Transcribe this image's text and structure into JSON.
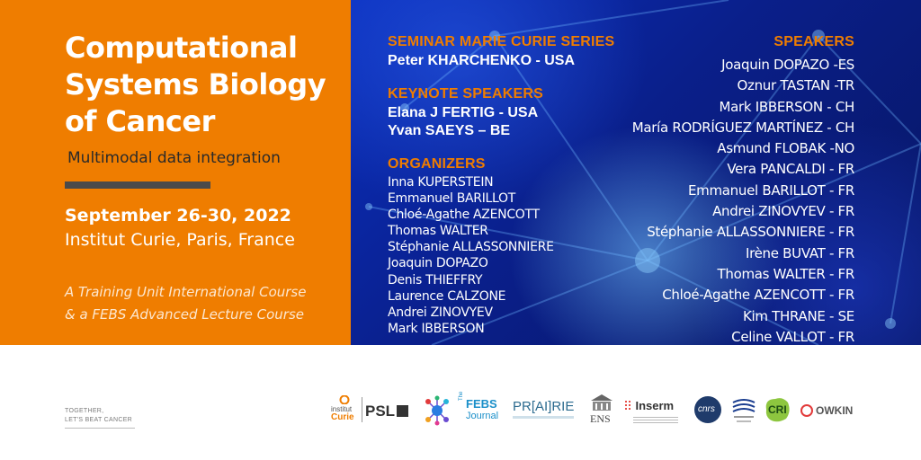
{
  "event": {
    "title_line1": "Computational",
    "title_line2": "Systems Biology",
    "title_line3": "of Cancer",
    "subtitle": "Multimodal data integration",
    "dates": "September 26-30, 2022",
    "location": "Institut Curie, Paris, France",
    "course_line1": "A Training Unit International Course",
    "course_line2": "& a FEBS Advanced Lecture Course"
  },
  "seminar": {
    "heading": "SEMINAR MARIE CURIE SERIES",
    "speaker": "Peter KHARCHENKO - USA"
  },
  "keynote": {
    "heading": "KEYNOTE SPEAKERS",
    "speakers": [
      "Elana J FERTIG - USA",
      "Yvan SAEYS – BE"
    ]
  },
  "organizers": {
    "heading": "ORGANIZERS",
    "names": [
      "Inna KUPERSTEIN",
      "Emmanuel BARILLOT",
      "Chloé-Agathe AZENCOTT",
      "Thomas WALTER",
      "Stéphanie ALLASSONNIERE",
      "Joaquin DOPAZO",
      "Denis THIEFFRY",
      "Laurence CALZONE",
      "Andrei ZINOVYEV",
      "Mark IBBERSON"
    ]
  },
  "speakers": {
    "heading": "SPEAKERS",
    "names": [
      "Joaquin DOPAZO -ES",
      "Oznur TASTAN -TR",
      "Mark IBBERSON - CH",
      "María RODRÍGUEZ MARTÍNEZ - CH",
      "Asmund FLOBAK -NO",
      "Vera PANCALDI - FR",
      "Emmanuel BARILLOT - FR",
      "Andrei ZINOVYEV - FR",
      "Stéphanie ALLASSONNIERE - FR",
      "Irène BUVAT - FR",
      "Thomas WALTER - FR",
      "Chloé-Agathe AZENCOTT - FR",
      "Kim THRANE - SE",
      "Celine VALLOT - FR"
    ]
  },
  "footer": {
    "tagline_line1": "TOGETHER,",
    "tagline_line2": "LET'S BEAT CANCER",
    "logos": {
      "curie_line1": "institut",
      "curie_line2": "Curie",
      "psl": "PSL",
      "febs_line1": "The",
      "febs_line2": "FEBS",
      "febs_line3": "Journal",
      "prairie": "PR[AI]RIE",
      "ens": "ENS",
      "inserm": "Inserm",
      "cnrs": "cnrs",
      "cri": "CRI",
      "owkin": "OWKIN"
    }
  },
  "colors": {
    "orange": "#ef7d00",
    "blue": "#0a2fbf",
    "dark_bar": "#4a4a4a"
  }
}
